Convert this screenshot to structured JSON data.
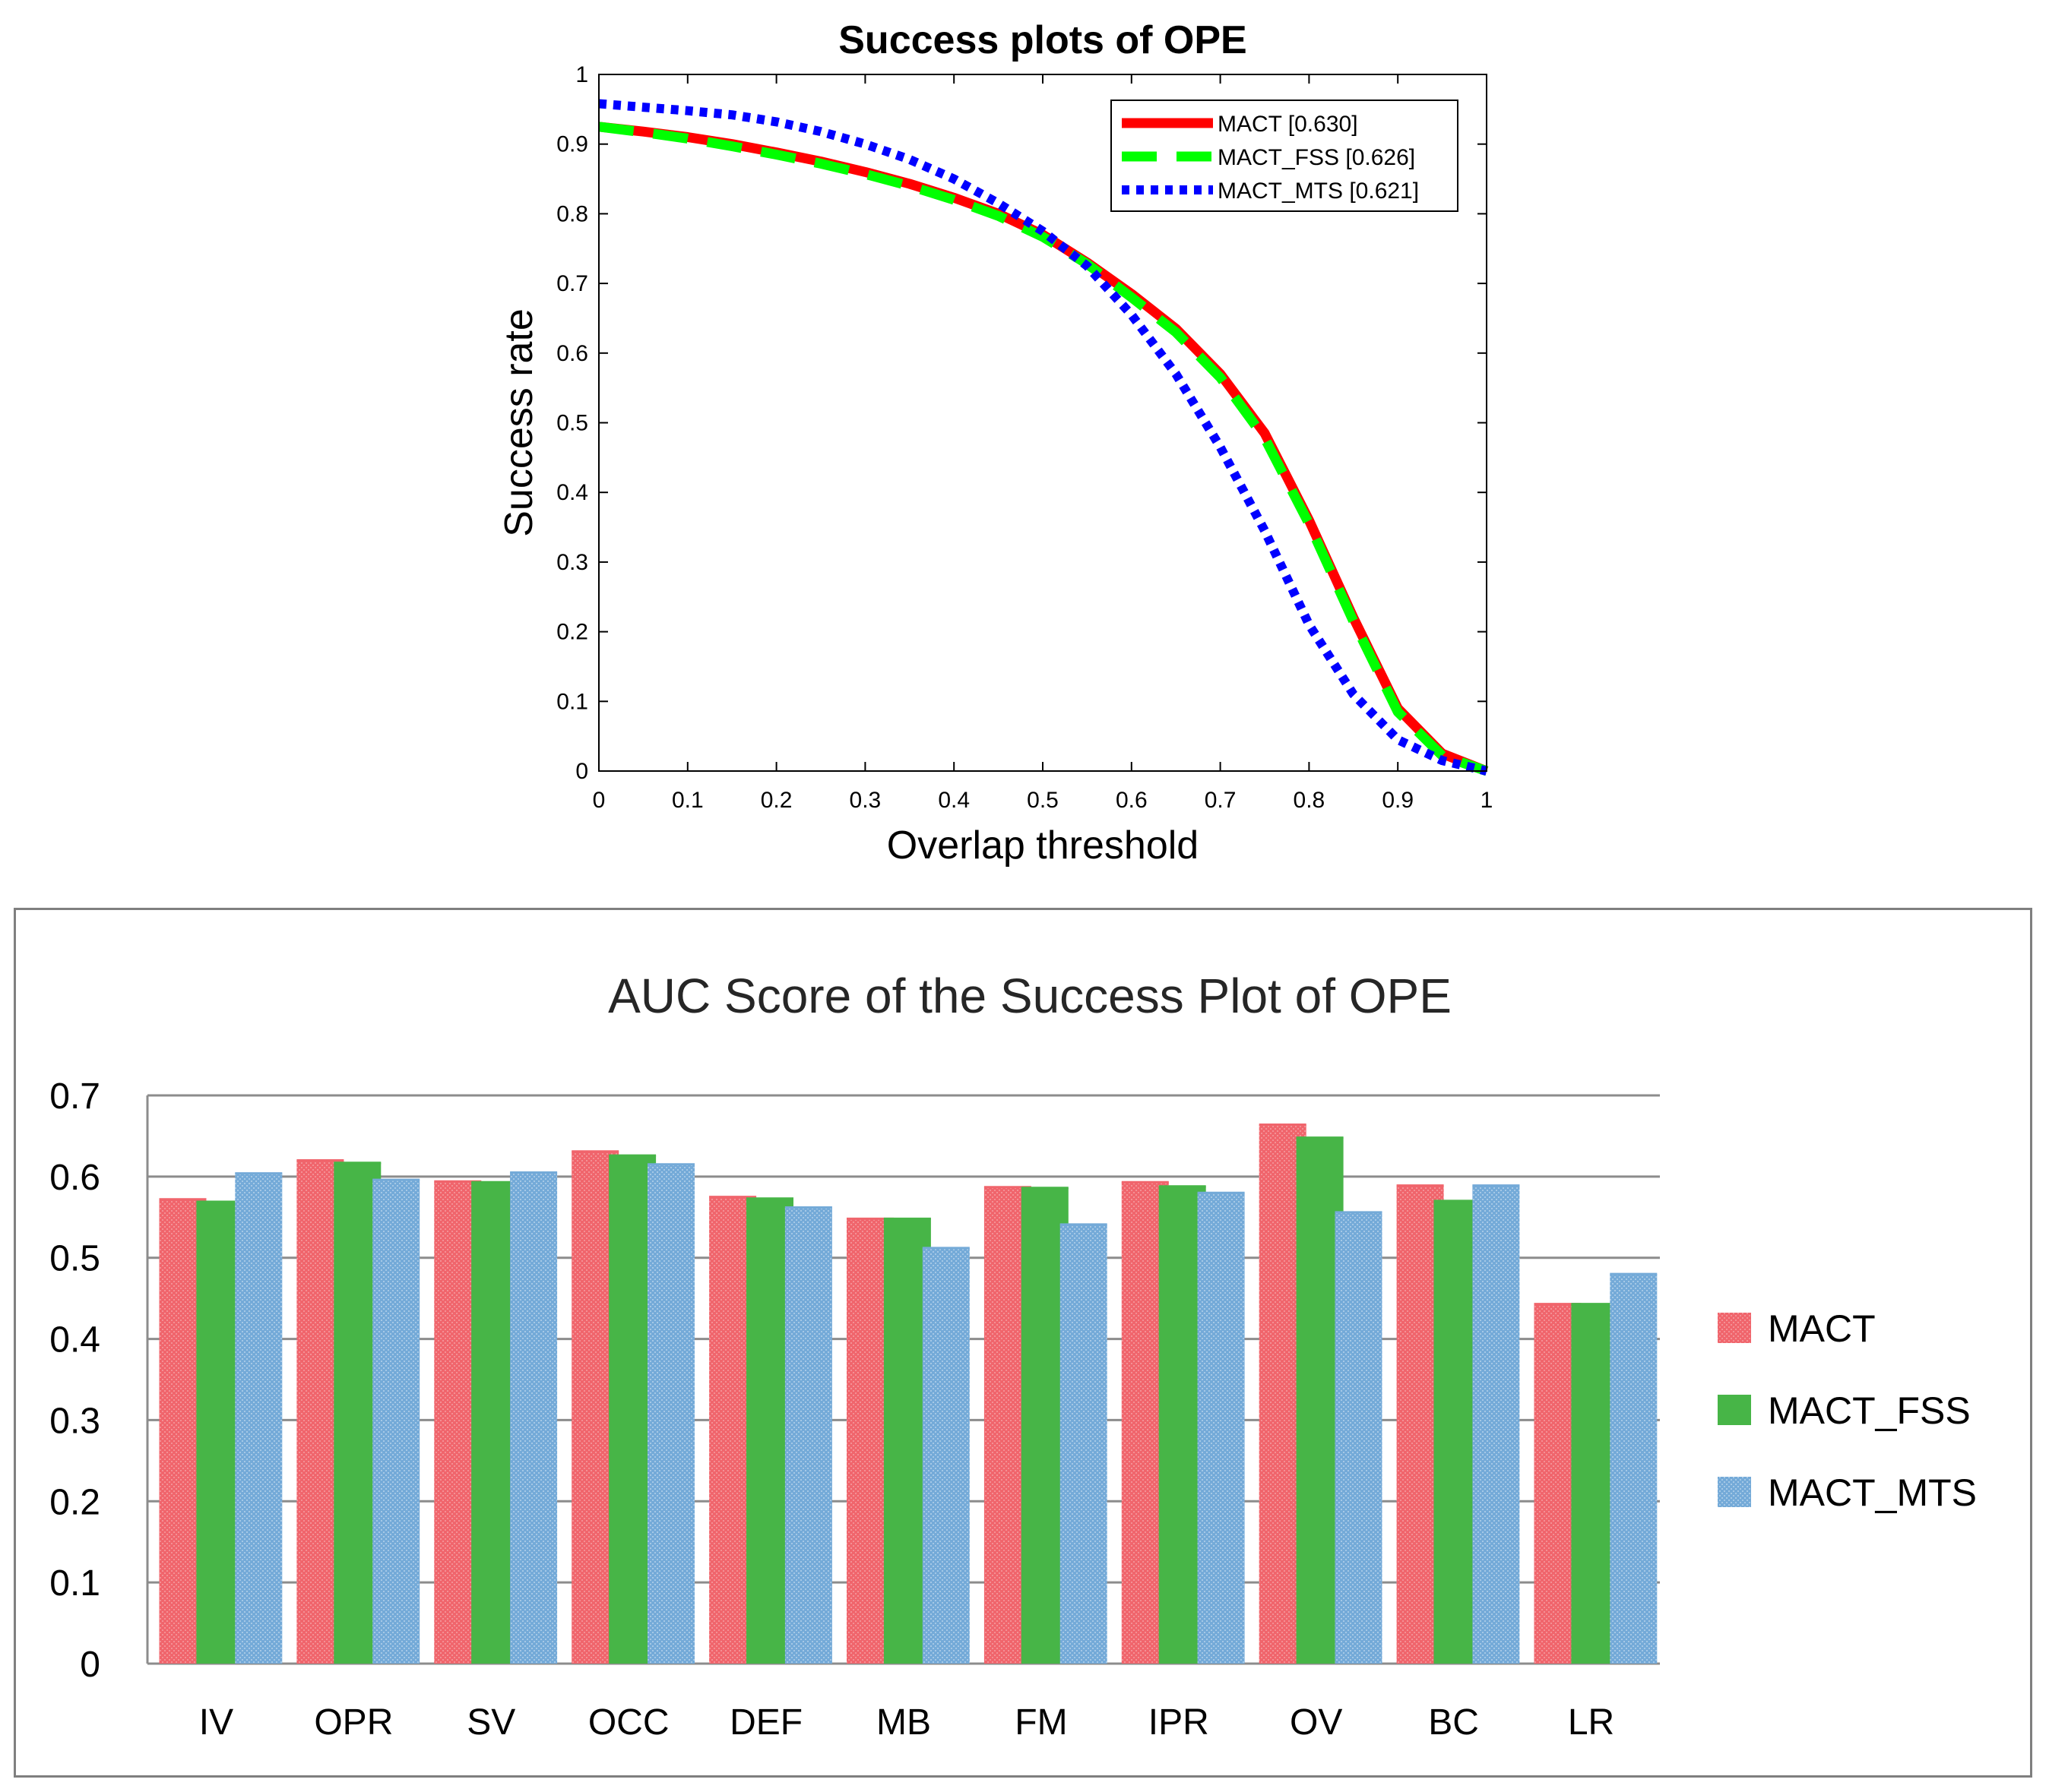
{
  "chart_data": [
    {
      "type": "line",
      "title": "Success plots of OPE",
      "xlabel": "Overlap threshold",
      "ylabel": "Success rate",
      "xlim": [
        0,
        1
      ],
      "ylim": [
        0,
        1
      ],
      "x_ticks": [
        "0",
        "0.1",
        "0.2",
        "0.3",
        "0.4",
        "0.5",
        "0.6",
        "0.7",
        "0.8",
        "0.9",
        "1"
      ],
      "y_ticks": [
        "0",
        "0.1",
        "0.2",
        "0.3",
        "0.4",
        "0.5",
        "0.6",
        "0.7",
        "0.8",
        "0.9",
        "1"
      ],
      "legend_position": "top-right",
      "x": [
        0,
        0.05,
        0.1,
        0.15,
        0.2,
        0.25,
        0.3,
        0.35,
        0.4,
        0.45,
        0.5,
        0.55,
        0.6,
        0.65,
        0.7,
        0.75,
        0.8,
        0.85,
        0.9,
        0.95,
        1
      ],
      "series": [
        {
          "name": "MACT [0.630]",
          "color": "#ff0000",
          "style": "solid",
          "values": [
            0.925,
            0.918,
            0.91,
            0.9,
            0.888,
            0.875,
            0.86,
            0.843,
            0.823,
            0.8,
            0.77,
            0.73,
            0.685,
            0.635,
            0.57,
            0.485,
            0.36,
            0.22,
            0.09,
            0.025,
            0.0
          ]
        },
        {
          "name": "MACT_FSS [0.626]",
          "color": "#00ff00",
          "style": "dashed",
          "values": [
            0.925,
            0.917,
            0.908,
            0.897,
            0.885,
            0.872,
            0.857,
            0.84,
            0.82,
            0.797,
            0.767,
            0.728,
            0.68,
            0.63,
            0.565,
            0.478,
            0.355,
            0.215,
            0.085,
            0.022,
            0.0
          ]
        },
        {
          "name": "MACT_MTS [0.621]",
          "color": "#0000ff",
          "style": "dotted",
          "values": [
            0.958,
            0.953,
            0.948,
            0.942,
            0.932,
            0.918,
            0.9,
            0.878,
            0.85,
            0.815,
            0.775,
            0.725,
            0.655,
            0.57,
            0.465,
            0.345,
            0.21,
            0.11,
            0.045,
            0.015,
            0.0
          ]
        }
      ]
    },
    {
      "type": "bar",
      "title": "AUC Score of the Success Plot of OPE",
      "xlabel": "",
      "ylabel": "",
      "ylim": [
        0,
        0.7
      ],
      "y_ticks": [
        "0",
        "0.1",
        "0.2",
        "0.3",
        "0.4",
        "0.5",
        "0.6",
        "0.7"
      ],
      "grid": true,
      "legend_position": "right",
      "categories": [
        "IV",
        "OPR",
        "SV",
        "OCC",
        "DEF",
        "MB",
        "FM",
        "IPR",
        "OV",
        "BC",
        "LR"
      ],
      "series": [
        {
          "name": "MACT",
          "color": "#f0656c",
          "values": [
            0.572,
            0.62,
            0.594,
            0.631,
            0.575,
            0.548,
            0.587,
            0.593,
            0.664,
            0.589,
            0.443
          ]
        },
        {
          "name": "MACT_FSS",
          "color": "#47b547",
          "values": [
            0.569,
            0.617,
            0.593,
            0.626,
            0.573,
            0.548,
            0.586,
            0.588,
            0.648,
            0.57,
            0.443
          ]
        },
        {
          "name": "MACT_MTS",
          "color": "#74aad8",
          "values": [
            0.604,
            0.596,
            0.605,
            0.615,
            0.562,
            0.512,
            0.541,
            0.58,
            0.556,
            0.589,
            0.48
          ]
        }
      ]
    }
  ]
}
